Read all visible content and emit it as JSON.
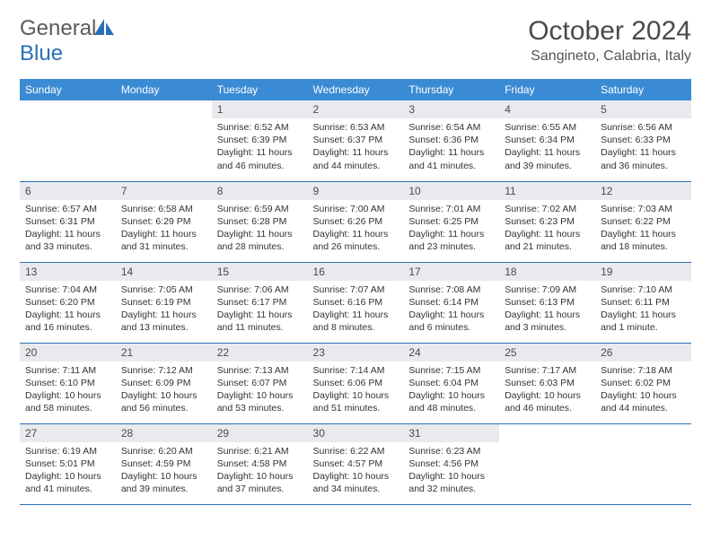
{
  "logo": {
    "text_gray": "General",
    "text_blue": "Blue"
  },
  "title": "October 2024",
  "location": "Sangineto, Calabria, Italy",
  "colors": {
    "header_bg": "#3b8bd4",
    "header_text": "#ffffff",
    "daynum_bg": "#e8eaed",
    "border": "#2a6fb5",
    "logo_gray": "#5a5a5a",
    "logo_blue": "#2a6fb5"
  },
  "weekdays": [
    "Sunday",
    "Monday",
    "Tuesday",
    "Wednesday",
    "Thursday",
    "Friday",
    "Saturday"
  ],
  "weeks": [
    [
      null,
      null,
      {
        "n": "1",
        "sr": "6:52 AM",
        "ss": "6:39 PM",
        "dl": "11 hours and 46 minutes."
      },
      {
        "n": "2",
        "sr": "6:53 AM",
        "ss": "6:37 PM",
        "dl": "11 hours and 44 minutes."
      },
      {
        "n": "3",
        "sr": "6:54 AM",
        "ss": "6:36 PM",
        "dl": "11 hours and 41 minutes."
      },
      {
        "n": "4",
        "sr": "6:55 AM",
        "ss": "6:34 PM",
        "dl": "11 hours and 39 minutes."
      },
      {
        "n": "5",
        "sr": "6:56 AM",
        "ss": "6:33 PM",
        "dl": "11 hours and 36 minutes."
      }
    ],
    [
      {
        "n": "6",
        "sr": "6:57 AM",
        "ss": "6:31 PM",
        "dl": "11 hours and 33 minutes."
      },
      {
        "n": "7",
        "sr": "6:58 AM",
        "ss": "6:29 PM",
        "dl": "11 hours and 31 minutes."
      },
      {
        "n": "8",
        "sr": "6:59 AM",
        "ss": "6:28 PM",
        "dl": "11 hours and 28 minutes."
      },
      {
        "n": "9",
        "sr": "7:00 AM",
        "ss": "6:26 PM",
        "dl": "11 hours and 26 minutes."
      },
      {
        "n": "10",
        "sr": "7:01 AM",
        "ss": "6:25 PM",
        "dl": "11 hours and 23 minutes."
      },
      {
        "n": "11",
        "sr": "7:02 AM",
        "ss": "6:23 PM",
        "dl": "11 hours and 21 minutes."
      },
      {
        "n": "12",
        "sr": "7:03 AM",
        "ss": "6:22 PM",
        "dl": "11 hours and 18 minutes."
      }
    ],
    [
      {
        "n": "13",
        "sr": "7:04 AM",
        "ss": "6:20 PM",
        "dl": "11 hours and 16 minutes."
      },
      {
        "n": "14",
        "sr": "7:05 AM",
        "ss": "6:19 PM",
        "dl": "11 hours and 13 minutes."
      },
      {
        "n": "15",
        "sr": "7:06 AM",
        "ss": "6:17 PM",
        "dl": "11 hours and 11 minutes."
      },
      {
        "n": "16",
        "sr": "7:07 AM",
        "ss": "6:16 PM",
        "dl": "11 hours and 8 minutes."
      },
      {
        "n": "17",
        "sr": "7:08 AM",
        "ss": "6:14 PM",
        "dl": "11 hours and 6 minutes."
      },
      {
        "n": "18",
        "sr": "7:09 AM",
        "ss": "6:13 PM",
        "dl": "11 hours and 3 minutes."
      },
      {
        "n": "19",
        "sr": "7:10 AM",
        "ss": "6:11 PM",
        "dl": "11 hours and 1 minute."
      }
    ],
    [
      {
        "n": "20",
        "sr": "7:11 AM",
        "ss": "6:10 PM",
        "dl": "10 hours and 58 minutes."
      },
      {
        "n": "21",
        "sr": "7:12 AM",
        "ss": "6:09 PM",
        "dl": "10 hours and 56 minutes."
      },
      {
        "n": "22",
        "sr": "7:13 AM",
        "ss": "6:07 PM",
        "dl": "10 hours and 53 minutes."
      },
      {
        "n": "23",
        "sr": "7:14 AM",
        "ss": "6:06 PM",
        "dl": "10 hours and 51 minutes."
      },
      {
        "n": "24",
        "sr": "7:15 AM",
        "ss": "6:04 PM",
        "dl": "10 hours and 48 minutes."
      },
      {
        "n": "25",
        "sr": "7:17 AM",
        "ss": "6:03 PM",
        "dl": "10 hours and 46 minutes."
      },
      {
        "n": "26",
        "sr": "7:18 AM",
        "ss": "6:02 PM",
        "dl": "10 hours and 44 minutes."
      }
    ],
    [
      {
        "n": "27",
        "sr": "6:19 AM",
        "ss": "5:01 PM",
        "dl": "10 hours and 41 minutes."
      },
      {
        "n": "28",
        "sr": "6:20 AM",
        "ss": "4:59 PM",
        "dl": "10 hours and 39 minutes."
      },
      {
        "n": "29",
        "sr": "6:21 AM",
        "ss": "4:58 PM",
        "dl": "10 hours and 37 minutes."
      },
      {
        "n": "30",
        "sr": "6:22 AM",
        "ss": "4:57 PM",
        "dl": "10 hours and 34 minutes."
      },
      {
        "n": "31",
        "sr": "6:23 AM",
        "ss": "4:56 PM",
        "dl": "10 hours and 32 minutes."
      },
      null,
      null
    ]
  ],
  "labels": {
    "sunrise": "Sunrise: ",
    "sunset": "Sunset: ",
    "daylight": "Daylight: "
  }
}
